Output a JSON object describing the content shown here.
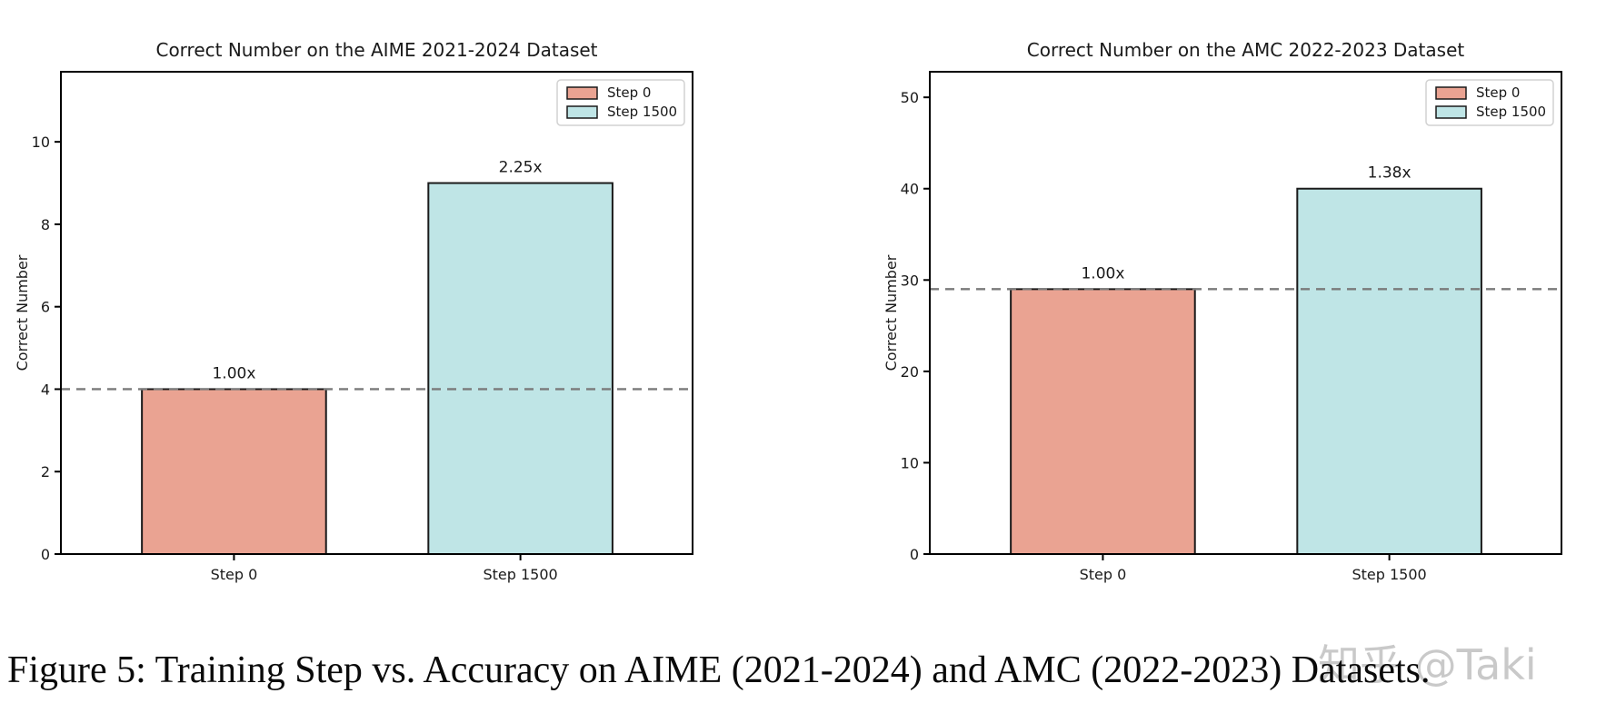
{
  "figure": {
    "caption": "Figure 5: Training Step vs. Accuracy on AIME (2021-2024) and AMC (2022-2023) Datasets.",
    "watermark": "知乎 @Taki"
  },
  "colors": {
    "step0_fill": "#EAA392",
    "step1500_fill": "#BFE5E6",
    "bar_edge": "#1a1a1a",
    "dashed_line": "#7a7a7a",
    "axis": "#000000",
    "text": "#1a1a1a",
    "legend_border": "#d2d2d2",
    "watermark": "#c9c9c9"
  },
  "chart_data": [
    {
      "type": "bar",
      "title": "Correct Number on the AIME 2021-2024 Dataset",
      "xlabel": "",
      "ylabel": "Correct Number",
      "categories": [
        "Step 0",
        "Step 1500"
      ],
      "values": [
        4,
        9
      ],
      "bar_labels": [
        "1.00x",
        "2.25x"
      ],
      "bar_colors": [
        "#EAA392",
        "#BFE5E6"
      ],
      "legend": [
        {
          "label": "Step 0",
          "color": "#EAA392"
        },
        {
          "label": "Step 1500",
          "color": "#BFE5E6"
        }
      ],
      "legend_position": "upper right",
      "yticks": [
        0,
        2,
        4,
        6,
        8,
        10
      ],
      "ylim": [
        0,
        11.7
      ],
      "reference_line_y": 4,
      "grid": false
    },
    {
      "type": "bar",
      "title": "Correct Number on the AMC 2022-2023 Dataset",
      "xlabel": "",
      "ylabel": "Correct Number",
      "categories": [
        "Step 0",
        "Step 1500"
      ],
      "values": [
        29,
        40
      ],
      "bar_labels": [
        "1.00x",
        "1.38x"
      ],
      "bar_colors": [
        "#EAA392",
        "#BFE5E6"
      ],
      "legend": [
        {
          "label": "Step 0",
          "color": "#EAA392"
        },
        {
          "label": "Step 1500",
          "color": "#BFE5E6"
        }
      ],
      "legend_position": "upper right",
      "yticks": [
        0,
        10,
        20,
        30,
        40,
        50
      ],
      "ylim": [
        0,
        52.8
      ],
      "reference_line_y": 29,
      "grid": false
    }
  ]
}
